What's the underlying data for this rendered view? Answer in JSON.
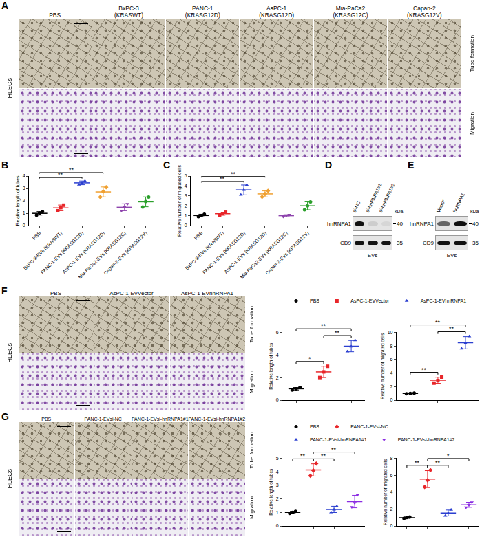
{
  "panel_a": {
    "letter": "A",
    "side_label": "HLECs",
    "row_labels": [
      "Tube formation",
      "Migration"
    ],
    "columns": [
      [
        "PBS"
      ],
      [
        "BxPC-3",
        "(KRASWT)"
      ],
      [
        "PANC-1",
        "(KRASG12D)"
      ],
      [
        "AsPC-1",
        "(KRASG12D)"
      ],
      [
        "Mia-PaCa2",
        "(KRASG12C)"
      ],
      [
        "Capan-2",
        "(KRASG12V)"
      ]
    ]
  },
  "panel_d": {
    "letter": "D",
    "lanes": [
      "si-NC",
      "si-hnRNPA1#1",
      "si-hnRNPA1#2"
    ],
    "rows": [
      {
        "name": "hnRNPA1",
        "kDa": 40,
        "intensity": [
          1,
          0.1,
          0.06
        ]
      },
      {
        "name": "CD9",
        "kDa": 35,
        "intensity": [
          1,
          1,
          1
        ]
      }
    ],
    "unit": "kDa",
    "sample": "EVs"
  },
  "panel_e": {
    "letter": "E",
    "lanes": [
      "Vector",
      "hnRNPA1"
    ],
    "rows": [
      {
        "name": "hnRNPA1",
        "kDa": 40,
        "intensity": [
          0.6,
          1
        ]
      },
      {
        "name": "CD9",
        "kDa": 35,
        "intensity": [
          1,
          1
        ]
      }
    ],
    "unit": "kDa",
    "sample": "EVs"
  },
  "panel_f": {
    "letter": "F",
    "side_label": "HLECs",
    "row_labels": [
      "Tube formation",
      "Migration"
    ],
    "columns": [
      "PBS",
      "AsPC-1-EVVector",
      "AsPC-1-EVhnRNPA1"
    ]
  },
  "panel_g": {
    "letter": "G",
    "side_label": "HLECs",
    "row_labels": [
      "Tube formation",
      "Migration"
    ],
    "columns": [
      "PBS",
      "PANC-1-EVsi-NC",
      "PANC-1-EVsi-hnRNPA1#1",
      "PANC-1-EVsi-hnRNPA1#2"
    ]
  },
  "chart_data": [
    {
      "letter": "B",
      "type": "scatter",
      "categories": [
        "PBS",
        "BxPC-3-EVs (KRASWT)",
        "PANC-1-EVs (KRASG12D)",
        "AsPC-1-EVs (KRASG12D)",
        "Mia-PaCa2-EVs (KRASG12C)",
        "Capan-2-EVs (KRASG12V)"
      ],
      "colors": [
        "#000000",
        "#e8262a",
        "#2b3fd0",
        "#f0a030",
        "#8e44ad",
        "#2ca02c"
      ],
      "markers": [
        "circle",
        "square",
        "triangle-up",
        "diamond",
        "triangle-down",
        "circle"
      ],
      "ylabel": "Relative length of tubes",
      "ylim": [
        0,
        4
      ],
      "yticks": [
        0,
        1,
        2,
        3,
        4
      ],
      "groups": [
        {
          "points": [
            0.85,
            1.0,
            1.12
          ],
          "mean": 0.99,
          "sd": 0.14
        },
        {
          "points": [
            1.2,
            1.45,
            1.65
          ],
          "mean": 1.43,
          "sd": 0.23
        },
        {
          "points": [
            3.3,
            3.45,
            3.6
          ],
          "mean": 3.45,
          "sd": 0.15
        },
        {
          "points": [
            2.3,
            2.75,
            3.1
          ],
          "mean": 2.72,
          "sd": 0.4
        },
        {
          "points": [
            1.2,
            1.5,
            1.75
          ],
          "mean": 1.48,
          "sd": 0.28
        },
        {
          "points": [
            1.5,
            1.95,
            2.3
          ],
          "mean": 1.92,
          "sd": 0.4
        }
      ],
      "significance": [
        {
          "from": 0,
          "to": 2,
          "label": "**"
        },
        {
          "from": 0,
          "to": 3,
          "label": "**"
        }
      ]
    },
    {
      "letter": "C",
      "type": "scatter",
      "categories": [
        "PBS",
        "BxPC-3-EVs (KRASWT)",
        "PANC-1-EVs (KRASG12D)",
        "AsPC-1-EVs (KRASG12D)",
        "Mia-PaCa2-EVs (KRASG12C)",
        "Capan-2-EVs (KRASG12V)"
      ],
      "colors": [
        "#000000",
        "#e8262a",
        "#2b3fd0",
        "#f0a030",
        "#8e44ad",
        "#2ca02c"
      ],
      "markers": [
        "circle",
        "square",
        "triangle-up",
        "diamond",
        "triangle-down",
        "circle"
      ],
      "ylabel": "Relative number of migrated cells",
      "ylim": [
        0,
        5
      ],
      "yticks": [
        0,
        1,
        2,
        3,
        4,
        5
      ],
      "groups": [
        {
          "points": [
            0.9,
            1.0,
            1.15
          ],
          "mean": 1.02,
          "sd": 0.13
        },
        {
          "points": [
            1.05,
            1.2,
            1.35
          ],
          "mean": 1.2,
          "sd": 0.15
        },
        {
          "points": [
            3.1,
            3.6,
            4.1
          ],
          "mean": 3.6,
          "sd": 0.5
        },
        {
          "points": [
            2.9,
            3.2,
            3.5
          ],
          "mean": 3.2,
          "sd": 0.3
        },
        {
          "points": [
            0.9,
            1.0,
            1.1
          ],
          "mean": 1.0,
          "sd": 0.1
        },
        {
          "points": [
            1.6,
            2.0,
            2.4
          ],
          "mean": 2.0,
          "sd": 0.4
        }
      ],
      "significance": [
        {
          "from": 0,
          "to": 2,
          "label": "**"
        },
        {
          "from": 0,
          "to": 3,
          "label": "**"
        }
      ]
    },
    {
      "type": "scatter",
      "legend": "top left",
      "tick_labels": "y",
      "series": [
        {
          "name": "PBS",
          "color": "#000000",
          "marker": "circle"
        },
        {
          "name": "AsPC-1-EVVector",
          "color": "#e8262a",
          "marker": "square"
        },
        {
          "name": "AsPC-1-EVhnRNPA1",
          "color": "#2b3fd0",
          "marker": "triangle-up"
        }
      ],
      "plots": [
        {
          "ylabel": "Relative length of tubes",
          "ylim": [
            0,
            6
          ],
          "yticks": [
            0,
            2,
            4,
            6
          ],
          "groups": [
            {
              "points": [
                0.9,
                1.0,
                1.12
              ],
              "mean": 1.01,
              "sd": 0.11
            },
            {
              "points": [
                2.0,
                2.5,
                3.0
              ],
              "mean": 2.5,
              "sd": 0.5
            },
            {
              "points": [
                4.3,
                4.75,
                5.3
              ],
              "mean": 4.78,
              "sd": 0.5
            }
          ],
          "significance": [
            {
              "from": 0,
              "to": 1,
              "label": "*"
            },
            {
              "from": 1,
              "to": 2,
              "label": "**"
            },
            {
              "from": 0,
              "to": 2,
              "label": "**"
            }
          ]
        },
        {
          "ylabel": "Relative number of migrated cells",
          "ylim": [
            0,
            10
          ],
          "yticks": [
            0,
            2,
            4,
            6,
            8,
            10
          ],
          "groups": [
            {
              "points": [
                0.95,
                1.0,
                1.05
              ],
              "mean": 1.0,
              "sd": 0.05
            },
            {
              "points": [
                2.5,
                2.9,
                3.4
              ],
              "mean": 2.93,
              "sd": 0.45
            },
            {
              "points": [
                7.6,
                8.4,
                9.4
              ],
              "mean": 8.47,
              "sd": 0.9
            }
          ],
          "significance": [
            {
              "from": 0,
              "to": 1,
              "label": "**"
            },
            {
              "from": 1,
              "to": 2,
              "label": "**"
            },
            {
              "from": 0,
              "to": 2,
              "label": "**"
            }
          ]
        }
      ]
    },
    {
      "type": "scatter",
      "legend": "top left",
      "tick_labels": "y",
      "series": [
        {
          "name": "PBS",
          "color": "#000000",
          "marker": "circle"
        },
        {
          "name": "PANC-1-EVsi-NC",
          "color": "#e8262a",
          "marker": "diamond"
        },
        {
          "name": "PANC-1-EVsi-hnRNPA1#1",
          "color": "#2b3fd0",
          "marker": "triangle-up"
        },
        {
          "name": "PANC-1-EVsi-hnRNPA1#2",
          "color": "#8a2be2",
          "marker": "triangle-down"
        }
      ],
      "plots": [
        {
          "ylabel": "Relative length of tubes",
          "ylim": [
            0,
            5
          ],
          "yticks": [
            0,
            1,
            2,
            3,
            4,
            5
          ],
          "groups": [
            {
              "points": [
                0.92,
                1.0,
                1.08
              ],
              "mean": 1.0,
              "sd": 0.08
            },
            {
              "points": [
                3.7,
                4.1,
                4.6
              ],
              "mean": 4.13,
              "sd": 0.45
            },
            {
              "points": [
                1.0,
                1.2,
                1.45
              ],
              "mean": 1.22,
              "sd": 0.23
            },
            {
              "points": [
                1.4,
                1.7,
                2.3
              ],
              "mean": 1.8,
              "sd": 0.46
            }
          ],
          "significance": [
            {
              "from": 0,
              "to": 1,
              "label": "**"
            },
            {
              "from": 1,
              "to": 2,
              "label": "**"
            },
            {
              "from": 1,
              "to": 3,
              "label": "**"
            }
          ]
        },
        {
          "ylabel": "Relative number of migrated cells",
          "ylim": [
            0,
            8
          ],
          "yticks": [
            0,
            2,
            4,
            6,
            8
          ],
          "groups": [
            {
              "points": [
                0.9,
                1.0,
                1.05
              ],
              "mean": 0.98,
              "sd": 0.08
            },
            {
              "points": [
                4.6,
                5.4,
                6.6
              ],
              "mean": 5.53,
              "sd": 1.0
            },
            {
              "points": [
                1.2,
                1.5,
                1.9
              ],
              "mean": 1.53,
              "sd": 0.35
            },
            {
              "points": [
                2.2,
                2.5,
                2.8
              ],
              "mean": 2.5,
              "sd": 0.3
            }
          ],
          "significance": [
            {
              "from": 0,
              "to": 1,
              "label": "**"
            },
            {
              "from": 1,
              "to": 2,
              "label": "**"
            },
            {
              "from": 1,
              "to": 3,
              "label": "*"
            }
          ]
        }
      ]
    }
  ]
}
